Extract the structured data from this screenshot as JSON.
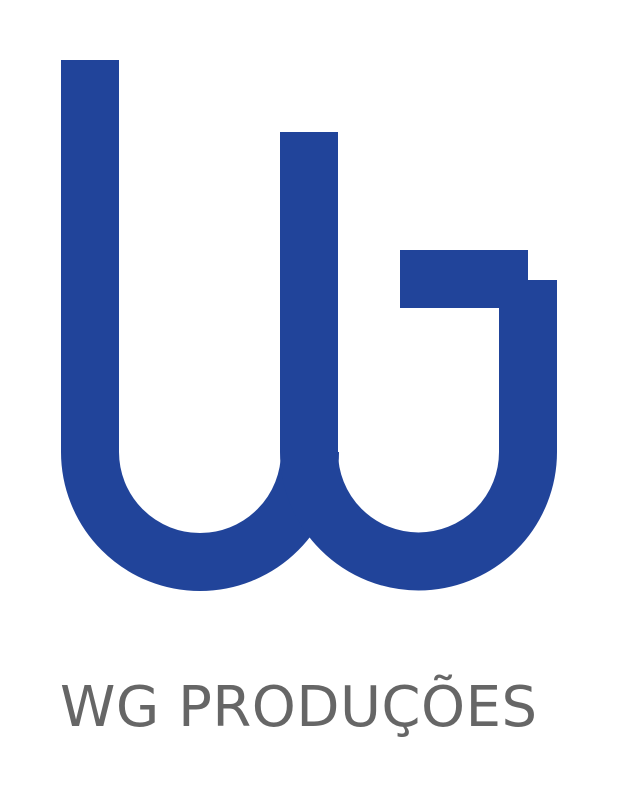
{
  "brand": {
    "name": "WG PRODUÇÕES",
    "mark": "WG",
    "color": "#21449a",
    "text_color": "#666666"
  }
}
